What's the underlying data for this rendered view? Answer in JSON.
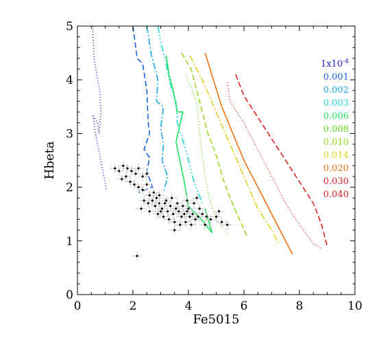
{
  "chart_data": {
    "type": "line",
    "title": "",
    "xlabel": "Fe5015",
    "ylabel": "Hbeta",
    "xlim": [
      0,
      10
    ],
    "ylim": [
      0,
      5
    ],
    "x_ticks": [
      0,
      2,
      4,
      6,
      8,
      10
    ],
    "y_ticks": [
      0,
      1,
      2,
      3,
      4,
      5
    ],
    "x_tick_labels": [
      "0",
      "2",
      "4",
      "6",
      "8",
      "10"
    ],
    "y_tick_labels": [
      "0",
      "1",
      "2",
      "3",
      "4",
      "5"
    ],
    "grid": false,
    "legend_position": "right",
    "series": [
      {
        "name": "1x10",
        "name_sup": "-4",
        "color": "#1a1acc",
        "dash": "1,3",
        "points": [
          [
            0.55,
            5.0
          ],
          [
            0.6,
            4.4
          ],
          [
            0.7,
            4.1
          ],
          [
            0.8,
            3.8
          ],
          [
            0.85,
            3.4
          ],
          [
            0.78,
            3.0
          ],
          [
            0.72,
            3.2
          ],
          [
            0.55,
            3.35
          ],
          [
            0.65,
            3.0
          ],
          [
            1.05,
            1.95
          ]
        ]
      },
      {
        "name": "0.001",
        "color": "#1460e0",
        "dash": "8,4",
        "points": [
          [
            2.0,
            5.0
          ],
          [
            2.15,
            4.4
          ],
          [
            2.35,
            4.3
          ],
          [
            2.5,
            3.8
          ],
          [
            2.55,
            3.2
          ],
          [
            2.6,
            3.0
          ],
          [
            2.4,
            2.7
          ],
          [
            2.6,
            2.55
          ],
          [
            2.5,
            2.3
          ],
          [
            2.7,
            2.0
          ],
          [
            2.2,
            1.9
          ]
        ]
      },
      {
        "name": "0.002",
        "color": "#18a8e0",
        "dash": "10,3,2,3",
        "points": [
          [
            2.5,
            5.0
          ],
          [
            2.65,
            4.5
          ],
          [
            2.9,
            4.0
          ],
          [
            2.85,
            3.6
          ],
          [
            3.1,
            3.5
          ],
          [
            3.0,
            3.1
          ],
          [
            3.1,
            2.8
          ],
          [
            3.05,
            2.5
          ],
          [
            3.25,
            2.2
          ],
          [
            3.1,
            1.9
          ]
        ]
      },
      {
        "name": "0.003",
        "color": "#20d8d8",
        "dash": "10,3,2,3,2,3,2,3",
        "points": [
          [
            2.9,
            5.0
          ],
          [
            3.0,
            4.7
          ],
          [
            3.2,
            4.3
          ],
          [
            3.3,
            4.0
          ],
          [
            3.55,
            3.6
          ],
          [
            3.6,
            3.2
          ],
          [
            3.9,
            2.7
          ],
          [
            4.2,
            2.1
          ],
          [
            4.5,
            1.7
          ]
        ]
      },
      {
        "name": "0.006",
        "color": "#20e060",
        "dash": "",
        "points": [
          [
            3.2,
            4.45
          ],
          [
            3.3,
            4.1
          ],
          [
            3.45,
            3.8
          ],
          [
            3.6,
            3.4
          ],
          [
            3.8,
            3.4
          ],
          [
            3.55,
            2.85
          ],
          [
            3.85,
            2.1
          ],
          [
            4.0,
            1.65
          ],
          [
            4.55,
            1.35
          ],
          [
            4.85,
            1.15
          ],
          [
            4.6,
            1.6
          ]
        ]
      },
      {
        "name": "0.008",
        "color": "#60d820",
        "dash": "1,3",
        "points": [
          [
            3.9,
            4.1
          ],
          [
            4.3,
            3.6
          ],
          [
            4.4,
            3.0
          ],
          [
            4.5,
            2.6
          ],
          [
            4.6,
            2.2
          ],
          [
            4.75,
            1.8
          ],
          [
            5.0,
            1.4
          ],
          [
            5.45,
            1.1
          ]
        ]
      },
      {
        "name": "0.010",
        "color": "#98d820",
        "dash": "8,4",
        "points": [
          [
            3.75,
            4.5
          ],
          [
            4.1,
            4.2
          ],
          [
            4.4,
            3.6
          ],
          [
            4.7,
            3.0
          ],
          [
            5.0,
            2.6
          ],
          [
            5.25,
            2.15
          ],
          [
            5.5,
            1.8
          ],
          [
            5.75,
            1.5
          ],
          [
            6.1,
            1.1
          ]
        ]
      },
      {
        "name": "0.014",
        "color": "#e0d020",
        "dash": "10,3,2,3",
        "points": [
          [
            4.05,
            4.45
          ],
          [
            4.5,
            4.0
          ],
          [
            5.0,
            3.4
          ],
          [
            5.5,
            2.8
          ],
          [
            6.0,
            2.2
          ],
          [
            6.5,
            1.6
          ],
          [
            7.0,
            1.2
          ],
          [
            7.25,
            0.95
          ]
        ]
      },
      {
        "name": "0.020",
        "color": "#f07010",
        "dash": "",
        "points": [
          [
            4.6,
            4.5
          ],
          [
            4.9,
            4.0
          ],
          [
            5.2,
            3.5
          ],
          [
            5.6,
            3.0
          ],
          [
            6.0,
            2.5
          ],
          [
            6.5,
            2.0
          ],
          [
            7.0,
            1.5
          ],
          [
            7.35,
            1.15
          ],
          [
            7.75,
            0.75
          ]
        ]
      },
      {
        "name": "0.030",
        "color": "#e02020",
        "dash": "1,3",
        "points": [
          [
            5.4,
            3.95
          ],
          [
            5.5,
            3.6
          ],
          [
            6.0,
            3.2
          ],
          [
            6.5,
            2.7
          ],
          [
            7.0,
            2.2
          ],
          [
            7.5,
            1.7
          ],
          [
            8.0,
            1.3
          ],
          [
            8.5,
            0.95
          ],
          [
            8.8,
            0.85
          ]
        ]
      },
      {
        "name": "0.040",
        "color": "#e02020",
        "dash": "8,4",
        "points": [
          [
            5.7,
            4.1
          ],
          [
            6.0,
            3.7
          ],
          [
            6.5,
            3.3
          ],
          [
            7.0,
            2.9
          ],
          [
            7.5,
            2.5
          ],
          [
            8.0,
            2.1
          ],
          [
            8.5,
            1.7
          ],
          [
            8.8,
            1.3
          ],
          [
            9.0,
            0.9
          ]
        ]
      }
    ],
    "observations": {
      "color": "#000000",
      "error_color": "#c8c8c8",
      "points": [
        [
          1.35,
          2.35
        ],
        [
          1.5,
          2.3
        ],
        [
          1.65,
          2.4
        ],
        [
          1.8,
          2.35
        ],
        [
          1.95,
          2.3
        ],
        [
          2.1,
          2.25
        ],
        [
          2.2,
          2.35
        ],
        [
          2.35,
          2.2
        ],
        [
          2.5,
          2.25
        ],
        [
          1.6,
          2.15
        ],
        [
          1.75,
          2.2
        ],
        [
          1.9,
          2.1
        ],
        [
          2.05,
          2.05
        ],
        [
          2.2,
          2.0
        ],
        [
          2.35,
          1.95
        ],
        [
          2.5,
          2.05
        ],
        [
          2.6,
          1.85
        ],
        [
          2.75,
          1.9
        ],
        [
          2.85,
          1.8
        ],
        [
          2.95,
          1.85
        ],
        [
          2.4,
          1.75
        ],
        [
          2.55,
          1.7
        ],
        [
          2.7,
          1.75
        ],
        [
          2.8,
          1.65
        ],
        [
          2.95,
          1.7
        ],
        [
          3.05,
          1.6
        ],
        [
          3.15,
          1.7
        ],
        [
          3.25,
          1.55
        ],
        [
          3.35,
          1.65
        ],
        [
          3.45,
          1.5
        ],
        [
          3.55,
          1.6
        ],
        [
          3.65,
          1.55
        ],
        [
          3.75,
          1.45
        ],
        [
          3.85,
          1.5
        ],
        [
          3.95,
          1.55
        ],
        [
          4.05,
          1.45
        ],
        [
          4.15,
          1.5
        ],
        [
          4.25,
          1.4
        ],
        [
          4.35,
          1.45
        ],
        [
          4.5,
          1.5
        ],
        [
          4.65,
          1.45
        ],
        [
          4.8,
          1.4
        ],
        [
          5.0,
          1.45
        ],
        [
          5.2,
          1.35
        ],
        [
          5.4,
          1.3
        ],
        [
          2.9,
          1.5
        ],
        [
          3.1,
          1.45
        ],
        [
          3.3,
          1.4
        ],
        [
          3.5,
          1.35
        ],
        [
          3.7,
          1.3
        ],
        [
          3.9,
          1.35
        ],
        [
          4.1,
          1.3
        ],
        [
          3.0,
          1.55
        ],
        [
          3.2,
          1.75
        ],
        [
          3.4,
          1.8
        ],
        [
          3.6,
          1.7
        ],
        [
          3.8,
          1.65
        ],
        [
          4.0,
          1.6
        ],
        [
          4.2,
          1.7
        ],
        [
          4.4,
          1.6
        ],
        [
          2.3,
          1.6
        ],
        [
          2.6,
          1.55
        ],
        [
          3.5,
          1.2
        ],
        [
          4.6,
          1.3
        ],
        [
          5.1,
          1.55
        ],
        [
          4.3,
          1.8
        ],
        [
          3.95,
          1.75
        ],
        [
          2.15,
          0.72
        ]
      ]
    }
  }
}
